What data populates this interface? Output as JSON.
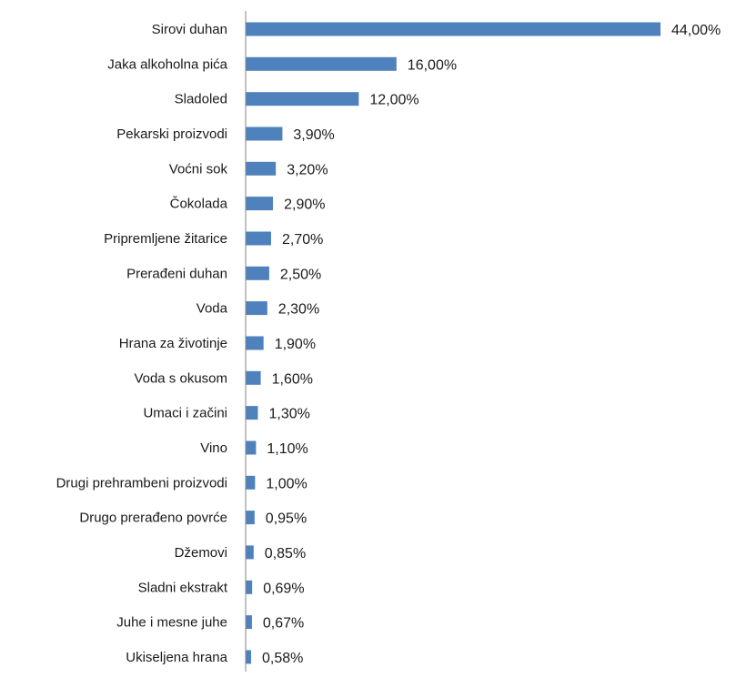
{
  "chart_data": {
    "type": "bar",
    "orientation": "horizontal",
    "title": "",
    "xlabel": "",
    "ylabel": "",
    "categories": [
      "Sirovi duhan",
      "Jaka alkoholna pića",
      "Sladoled",
      "Pekarski proizvodi",
      "Voćni sok",
      "Čokolada",
      "Pripremljene žitarice",
      "Prerađeni duhan",
      "Voda",
      "Hrana za životinje",
      "Voda s okusom",
      "Umaci i začini",
      "Vino",
      "Drugi prehrambeni proizvodi",
      "Drugo prerađeno povrće",
      "Džemovi",
      "Sladni ekstrakt",
      "Juhe i mesne juhe",
      "Ukiseljena hrana"
    ],
    "values": [
      44.0,
      16.0,
      12.0,
      3.9,
      3.2,
      2.9,
      2.7,
      2.5,
      2.3,
      1.9,
      1.6,
      1.3,
      1.1,
      1.0,
      0.95,
      0.85,
      0.69,
      0.67,
      0.58
    ],
    "value_labels": [
      "44,00%",
      "16,00%",
      "12,00%",
      "3,90%",
      "3,20%",
      "2,90%",
      "2,70%",
      "2,50%",
      "2,30%",
      "1,90%",
      "1,60%",
      "1,30%",
      "1,10%",
      "1,00%",
      "0,95%",
      "0,85%",
      "0,69%",
      "0,67%",
      "0,58%"
    ],
    "xlim": [
      0,
      44
    ],
    "grid": false,
    "legend": "none",
    "bar_color": "#4f81bd",
    "axis_color": "#868686"
  }
}
